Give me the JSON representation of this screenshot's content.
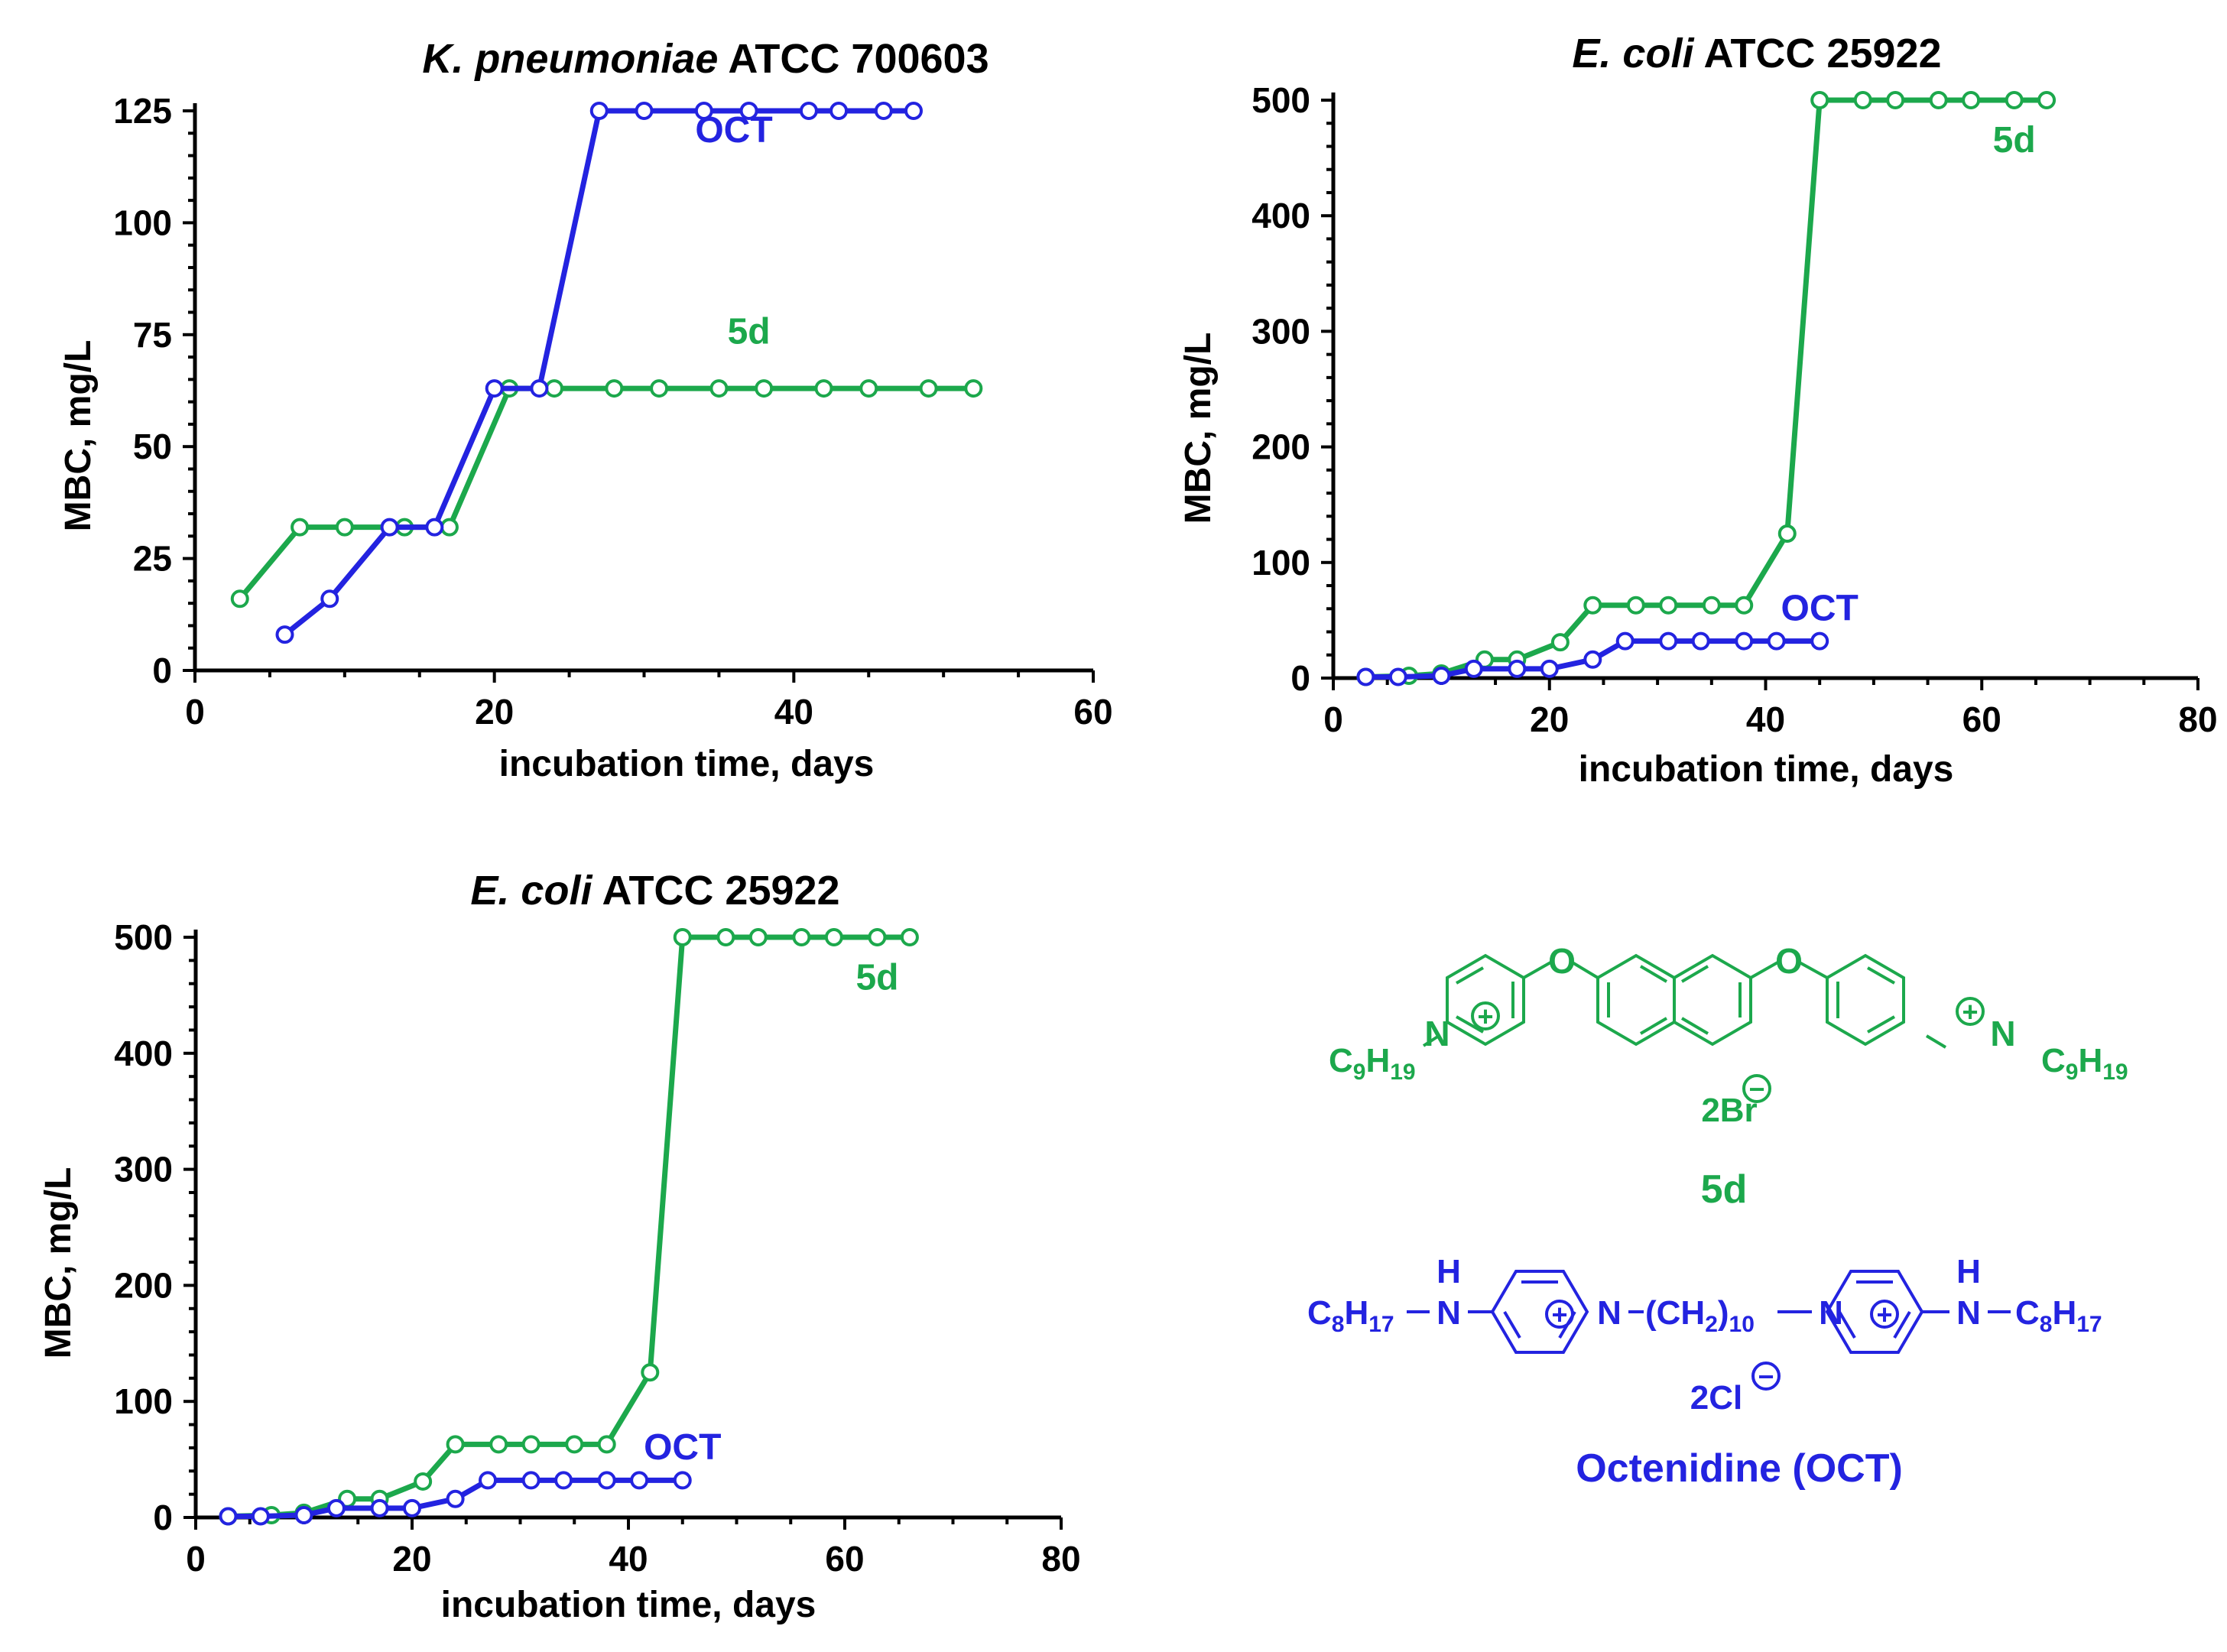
{
  "colors": {
    "oct": "#2323E0",
    "d5": "#1CA84C",
    "axis": "#000000"
  },
  "chart_data": [
    {
      "type": "line",
      "title": {
        "italic": "K. pneumoniae",
        "rest": " ATCC 700603"
      },
      "xlabel": "incubation time, days",
      "ylabel": "MBC, mg/L",
      "xlim": [
        0,
        60
      ],
      "ylim": [
        0,
        125
      ],
      "xticks": [
        0,
        20,
        40,
        60
      ],
      "yticks": [
        0,
        25,
        50,
        75,
        100,
        125
      ],
      "series": [
        {
          "name": "5d",
          "color_key": "d5",
          "label_at": [
            37,
            73
          ],
          "x": [
            3,
            7,
            10,
            14,
            17,
            21,
            24,
            28,
            31,
            35,
            38,
            42,
            45,
            49,
            52
          ],
          "y": [
            16,
            32,
            32,
            32,
            32,
            63,
            63,
            63,
            63,
            63,
            63,
            63,
            63,
            63,
            63
          ]
        },
        {
          "name": "OCT",
          "color_key": "oct",
          "label_at": [
            36,
            118
          ],
          "x": [
            6,
            9,
            13,
            16,
            20,
            23,
            27,
            30,
            34,
            37,
            41,
            43,
            46,
            48
          ],
          "y": [
            8,
            16,
            32,
            32,
            63,
            63,
            125,
            125,
            125,
            125,
            125,
            125,
            125,
            125
          ]
        }
      ]
    },
    {
      "type": "line",
      "title": {
        "italic": "E. coli",
        "rest": " ATCC 25922"
      },
      "xlabel": "incubation time, days",
      "ylabel": "MBC, mg/L",
      "xlim": [
        0,
        80
      ],
      "ylim": [
        0,
        500
      ],
      "xticks": [
        0,
        20,
        40,
        60,
        80
      ],
      "yticks": [
        0,
        100,
        200,
        300,
        400,
        500
      ],
      "series": [
        {
          "name": "5d",
          "color_key": "d5",
          "label_at": [
            63,
            455
          ],
          "x": [
            3,
            7,
            10,
            14,
            17,
            21,
            24,
            28,
            31,
            35,
            38,
            42,
            45,
            49,
            52,
            56,
            59,
            63,
            66
          ],
          "y": [
            1,
            2,
            4,
            16,
            16,
            31,
            63,
            63,
            63,
            63,
            63,
            125,
            500,
            500,
            500,
            500,
            500,
            500,
            500
          ]
        },
        {
          "name": "OCT",
          "color_key": "oct",
          "label_at": [
            45,
            50
          ],
          "x": [
            3,
            6,
            10,
            13,
            17,
            20,
            24,
            27,
            31,
            34,
            38,
            41,
            45
          ],
          "y": [
            1,
            1,
            2,
            8,
            8,
            8,
            16,
            32,
            32,
            32,
            32,
            32,
            32
          ]
        }
      ]
    },
    {
      "type": "line",
      "title": {
        "italic": "E. coli",
        "rest": " ATCC 25922"
      },
      "xlabel": "incubation time, days",
      "ylabel": "MBC, mg/L",
      "xlim": [
        0,
        80
      ],
      "ylim": [
        0,
        500
      ],
      "xticks": [
        0,
        20,
        40,
        60,
        80
      ],
      "yticks": [
        0,
        100,
        200,
        300,
        400,
        500
      ],
      "series": [
        {
          "name": "5d",
          "color_key": "d5",
          "label_at": [
            63,
            455
          ],
          "x": [
            3,
            7,
            10,
            14,
            17,
            21,
            24,
            28,
            31,
            35,
            38,
            42,
            45,
            49,
            52,
            56,
            59,
            63,
            66
          ],
          "y": [
            1,
            2,
            4,
            16,
            16,
            31,
            63,
            63,
            63,
            63,
            63,
            125,
            500,
            500,
            500,
            500,
            500,
            500,
            500
          ]
        },
        {
          "name": "OCT",
          "color_key": "oct",
          "label_at": [
            45,
            50
          ],
          "x": [
            3,
            6,
            10,
            13,
            17,
            20,
            24,
            27,
            31,
            34,
            38,
            41,
            45
          ],
          "y": [
            1,
            1,
            2,
            8,
            8,
            8,
            16,
            32,
            32,
            32,
            32,
            32,
            32
          ]
        }
      ]
    }
  ],
  "structures": {
    "d5": {
      "alkyl_left": {
        "main": "C",
        "sub1": "9",
        "mid": "H",
        "sub2": "19"
      },
      "alkyl_right": {
        "main": "C",
        "sub1": "9",
        "mid": "H",
        "sub2": "19"
      },
      "nitrogen": "N",
      "oxygen": "O",
      "plus": "+",
      "counterion": "2Br",
      "minus": "−",
      "name": "5d"
    },
    "oct": {
      "alkyl_left": {
        "main": "C",
        "sub1": "8",
        "mid": "H",
        "sub2": "17"
      },
      "alkyl_right": {
        "main": "C",
        "sub1": "8",
        "mid": "H",
        "sub2": "17"
      },
      "nh_h": "H",
      "nitrogen": "N",
      "linker": {
        "open": "(CH",
        "sub1": "2",
        "close": ")",
        "sub2": "10"
      },
      "plus": "+",
      "counterion": "2Cl",
      "minus": "−",
      "name": "Octenidine (OCT)"
    }
  }
}
